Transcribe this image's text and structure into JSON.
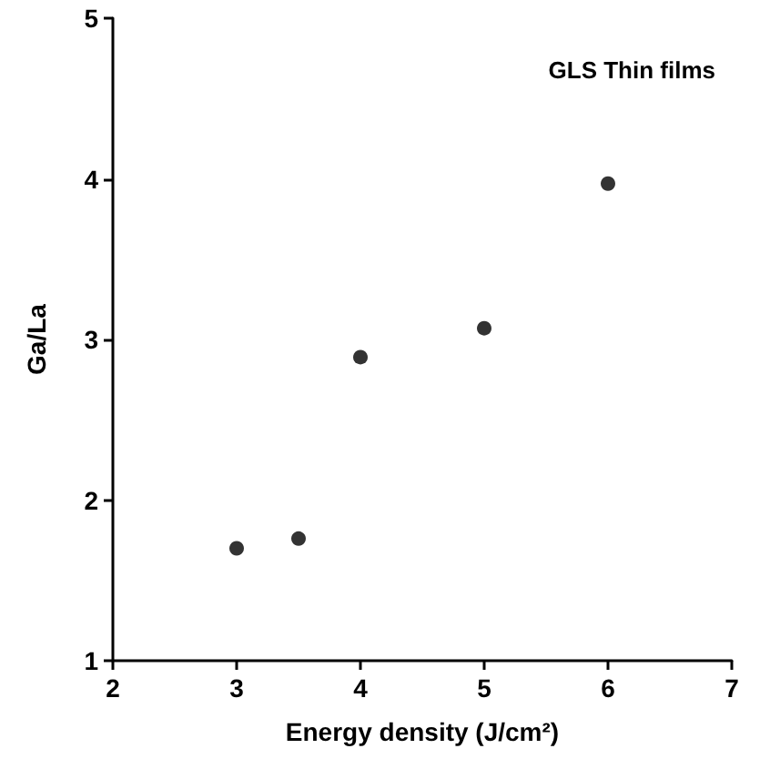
{
  "chart_data": {
    "type": "scatter",
    "xlabel": "Energy density (J/cm²)",
    "ylabel": "Ga/La",
    "annotations": [
      "GLS Thin films"
    ],
    "x": [
      3,
      3.5,
      4,
      5,
      6
    ],
    "values": [
      1.7,
      1.76,
      2.89,
      3.07,
      3.97
    ],
    "color": "#000000",
    "marker": "circle",
    "grid": false,
    "xlim": [
      2,
      7
    ],
    "xticks": [
      2,
      3,
      4,
      5,
      6,
      7
    ],
    "ylim": [
      1,
      5
    ],
    "yticks": [
      1,
      2,
      3,
      4,
      5
    ]
  }
}
